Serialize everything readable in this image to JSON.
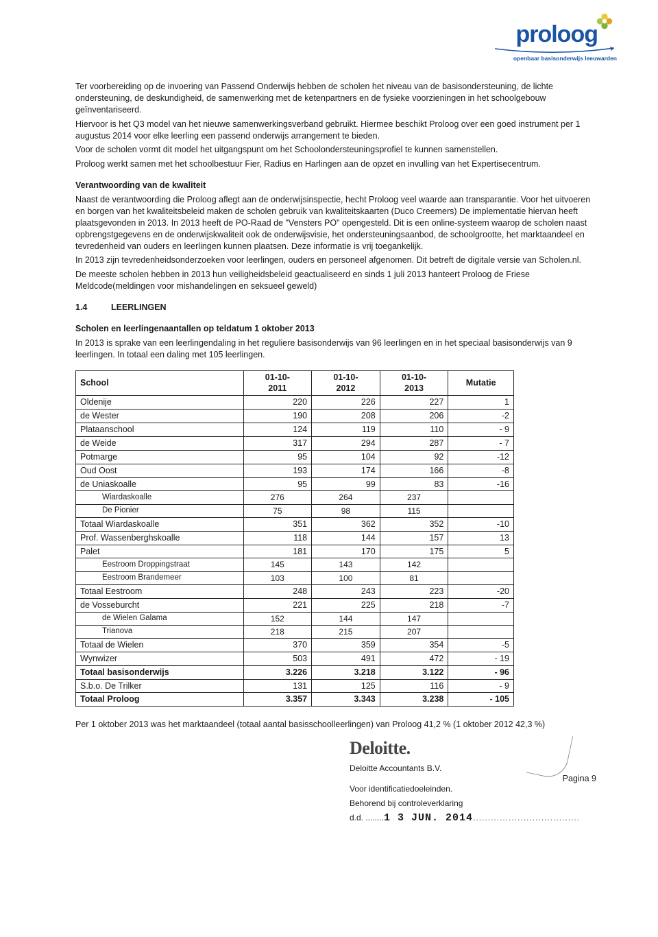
{
  "logo": {
    "word": "proloog",
    "subtitle": "openbaar basisonderwijs leeuwarden"
  },
  "paragraphs": {
    "p1": "Ter voorbereiding op de invoering van Passend Onderwijs hebben de scholen het niveau van de basisondersteuning, de lichte ondersteuning, de deskundigheid, de samenwerking met de ketenpartners en de fysieke voorzieningen in het schoolgebouw geïnventariseerd.",
    "p2": "Hiervoor is het Q3 model van het nieuwe samenwerkingsverband gebruikt. Hiermee beschikt Proloog over een goed instrument per 1 augustus 2014 voor elke leerling een passend onderwijs arrangement te bieden.",
    "p3": "Voor de scholen vormt dit model het uitgangspunt om het Schoolondersteuningsprofiel te kunnen samenstellen.",
    "p4": "Proloog werkt samen met het schoolbestuur Fier, Radius en Harlingen aan de opzet en invulling van het Expertisecentrum.",
    "h1": "Verantwoording van de kwaliteit",
    "p5": "Naast de verantwoording die Proloog aflegt aan de onderwijsinspectie, hecht Proloog veel waarde aan transparantie. Voor het uitvoeren en borgen van het kwaliteitsbeleid maken de scholen gebruik van kwaliteitskaarten (Duco Creemers) De implementatie hiervan heeft plaatsgevonden in 2013. In 2013 heeft de PO-Raad de \"Vensters PO\" opengesteld. Dit is een online-systeem waarop de scholen naast opbrengstgegevens en de onderwijskwaliteit ook de onderwijsvisie, het ondersteuningsaanbod, de schoolgrootte, het marktaandeel en tevredenheid van ouders en leerlingen kunnen plaatsen. Deze informatie is vrij toegankelijk.",
    "p6": "In 2013 zijn tevredenheidsonderzoeken voor leerlingen, ouders en personeel afgenomen. Dit betreft de digitale versie van Scholen.nl.",
    "p7": "De meeste scholen hebben in 2013 hun veiligheidsbeleid geactualiseerd en sinds 1 juli 2013 hanteert Proloog de Friese Meldcode(meldingen voor mishandelingen en seksueel geweld)",
    "secnum": "1.4",
    "sectitle": "LEERLINGEN",
    "h2": "Scholen en leerlingenaantallen op teldatum 1 oktober 2013",
    "p8": "In 2013 is sprake van een leerlingendaling in het reguliere basisonderwijs van 96 leerlingen en in het speciaal basisonderwijs van 9 leerlingen. In totaal een daling met 105 leerlingen.",
    "footer1": "Per 1 oktober 2013 was het marktaandeel (totaal aantal basisschoolleerlingen) van Proloog 41,2 % (1 oktober 2012  42,3 %)"
  },
  "table": {
    "headers": {
      "c0": "School",
      "c1a": "01-10-",
      "c1b": "2011",
      "c2a": "01-10-",
      "c2b": "2012",
      "c3a": "01-10-",
      "c3b": "2013",
      "c4": "Mutatie"
    },
    "rows": [
      {
        "s": "Oldenije",
        "a": "220",
        "b": "226",
        "c": "227",
        "m": "1"
      },
      {
        "s": "de Wester",
        "a": "190",
        "b": "208",
        "c": "206",
        "m": "-2"
      },
      {
        "s": "Plataanschool",
        "a": "124",
        "b": "119",
        "c": "110",
        "m": "- 9"
      },
      {
        "s": "de Weide",
        "a": "317",
        "b": "294",
        "c": "287",
        "m": "- 7"
      },
      {
        "s": "Potmarge",
        "a": "95",
        "b": "104",
        "c": "92",
        "m": "-12"
      },
      {
        "s": "Oud Oost",
        "a": "193",
        "b": "174",
        "c": "166",
        "m": "-8"
      },
      {
        "s": "de Uniaskoalle",
        "a": "95",
        "b": "99",
        "c": "83",
        "m": "-16"
      },
      {
        "s": "Wiardaskoalle",
        "a": "276",
        "b": "264",
        "c": "237",
        "m": "",
        "sub": true
      },
      {
        "s": "De Pionier",
        "a": "75",
        "b": "98",
        "c": "115",
        "m": "",
        "sub": true
      },
      {
        "s": "Totaal Wiardaskoalle",
        "a": "351",
        "b": "362",
        "c": "352",
        "m": "-10"
      },
      {
        "s": "Prof. Wassenberghskoalle",
        "a": "118",
        "b": "144",
        "c": "157",
        "m": "13"
      },
      {
        "s": "Palet",
        "a": "181",
        "b": "170",
        "c": "175",
        "m": "5"
      },
      {
        "s": "Eestroom Droppingstraat",
        "a": "145",
        "b": "143",
        "c": "142",
        "m": "",
        "sub": true
      },
      {
        "s": "Eestroom Brandemeer",
        "a": "103",
        "b": "100",
        "c": "81",
        "m": "",
        "sub": true
      },
      {
        "s": "Totaal Eestroom",
        "a": "248",
        "b": "243",
        "c": "223",
        "m": "-20"
      },
      {
        "s": "de Vosseburcht",
        "a": "221",
        "b": "225",
        "c": "218",
        "m": "-7"
      },
      {
        "s": "de Wielen Galama",
        "a": "152",
        "b": "144",
        "c": "147",
        "m": "",
        "sub": true
      },
      {
        "s": "Trianova",
        "a": "218",
        "b": "215",
        "c": "207",
        "m": "",
        "sub": true
      },
      {
        "s": "Totaal de Wielen",
        "a": "370",
        "b": "359",
        "c": "354",
        "m": "-5"
      },
      {
        "s": "Wynwizer",
        "a": "503",
        "b": "491",
        "c": "472",
        "m": "- 19"
      },
      {
        "s": "Totaal basisonderwijs",
        "a": "3.226",
        "b": "3.218",
        "c": "3.122",
        "m": "- 96",
        "bold": true
      },
      {
        "s": "S.b.o. De Trilker",
        "a": "131",
        "b": "125",
        "c": "116",
        "m": "- 9"
      },
      {
        "s": "Totaal Proloog",
        "a": "3.357",
        "b": "3.343",
        "c": "3.238",
        "m": "- 105",
        "bold": true
      }
    ]
  },
  "stamp": {
    "brand": "Deloitte.",
    "line1": "Deloitte Accountants B.V.",
    "line2": "Voor identificatiedoeleinden.",
    "line3": "Behorend bij controleverklaring",
    "dd": "d.d. ........",
    "date": "1 3  JUN. 2014",
    "page": "Pagina 9"
  }
}
